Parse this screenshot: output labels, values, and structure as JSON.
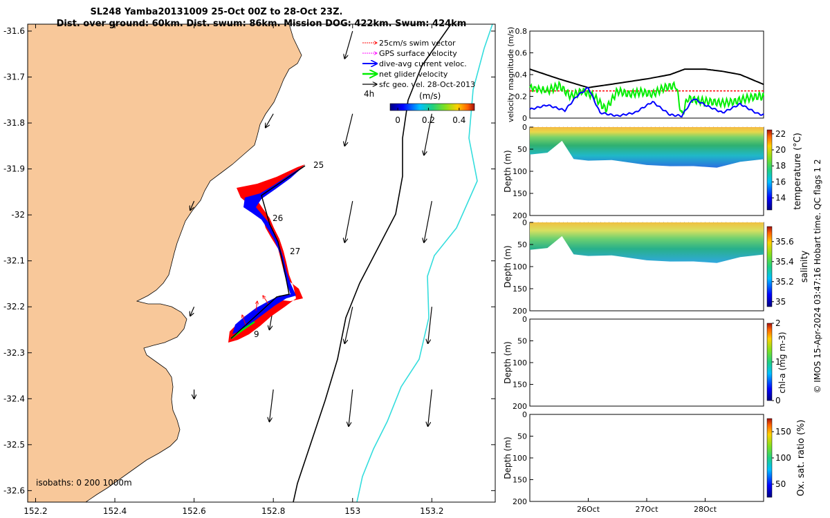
{
  "title": {
    "line1": "SL248 Yamba20131009 25-Oct 00Z to 28-Oct 23Z.",
    "line2": "Dist. over ground: 60km. Dist. swum: 86km. Mission DOG: 422km. Swum: 424km"
  },
  "credit": "© IMOS 15-Apr-2024 03:47:16 Hobart time. QC flags 1  2",
  "colors": {
    "land": "#f8c89a",
    "swim": "#ff0000",
    "gps": "#ff00ff",
    "current": "#0000ff",
    "net": "#00ee00",
    "sfc": "#000000",
    "isobath_200": "#000000",
    "isobath_1000": "#33dddd"
  },
  "chart_data": [
    {
      "type": "map",
      "x_ticks": [
        "152.2",
        "152.4",
        "152.6",
        "152.8",
        "153",
        "153.2"
      ],
      "x_tick_values": [
        152.2,
        152.4,
        152.6,
        152.8,
        153.0,
        153.2
      ],
      "xlim": [
        152.18,
        153.36
      ],
      "y_ticks": [
        "-31.6",
        "-31.7",
        "-31.8",
        "-31.9",
        "-32",
        "-32.1",
        "-32.2",
        "-32.3",
        "-32.4",
        "-32.5",
        "-32.6"
      ],
      "y_tick_values": [
        -31.6,
        -31.7,
        -31.8,
        -31.9,
        -32.0,
        -32.1,
        -32.2,
        -32.3,
        -32.4,
        -32.5,
        -32.6
      ],
      "ylim": [
        -32.625,
        -31.585
      ],
      "legend": [
        {
          "label": "25cm/s swim vector",
          "color": "#ff0000",
          "style": "dotted"
        },
        {
          "label": "GPS surface velocity",
          "color": "#ff00ff",
          "style": "dotted"
        },
        {
          "label": "dive-avg current veloc.",
          "color": "#0000ff",
          "style": "solid"
        },
        {
          "label": "net glider velocity",
          "color": "#00ee00",
          "style": "solid"
        },
        {
          "label": "sfc geo. vel. 28-Oct-2013",
          "color": "#000000",
          "style": "solid"
        }
      ],
      "legend_extra": "4h",
      "colorbar": {
        "label": "(m/s)",
        "ticks": [
          "0",
          "0.2",
          "0.4"
        ],
        "tick_values": [
          0,
          0.2,
          0.4
        ],
        "range": [
          -0.05,
          0.5
        ]
      },
      "isobath_label": "isobaths: 0   200  1000m",
      "day_labels": [
        {
          "label": "25",
          "lon": 152.875,
          "lat": -31.89
        },
        {
          "label": "26",
          "lon": 152.79,
          "lat": -31.99
        },
        {
          "label": "27",
          "lon": 152.82,
          "lat": -32.07
        },
        {
          "label": "9",
          "lon": 152.74,
          "lat": -32.265
        }
      ],
      "glider_track": [
        {
          "lon": 152.855,
          "lat": -31.885
        },
        {
          "lon": 152.73,
          "lat": -31.95
        },
        {
          "lon": 152.775,
          "lat": -31.995
        },
        {
          "lon": 152.79,
          "lat": -32.05
        },
        {
          "lon": 152.81,
          "lat": -32.1
        },
        {
          "lon": 152.825,
          "lat": -32.175
        },
        {
          "lon": 152.78,
          "lat": -32.18
        },
        {
          "lon": 152.68,
          "lat": -32.26
        }
      ],
      "sfc_vectors": [
        {
          "lon": 152.6,
          "lat": -31.97,
          "dlon": -0.01,
          "dlat": -0.02
        },
        {
          "lon": 152.6,
          "lat": -32.2,
          "dlon": -0.01,
          "dlat": -0.02
        },
        {
          "lon": 152.6,
          "lat": -32.38,
          "dlon": 0.0,
          "dlat": -0.02
        },
        {
          "lon": 152.8,
          "lat": -31.78,
          "dlon": -0.02,
          "dlat": -0.03
        },
        {
          "lon": 152.8,
          "lat": -32.2,
          "dlon": -0.01,
          "dlat": -0.05
        },
        {
          "lon": 152.8,
          "lat": -32.38,
          "dlon": -0.01,
          "dlat": -0.07
        },
        {
          "lon": 153.0,
          "lat": -31.6,
          "dlon": -0.02,
          "dlat": -0.06
        },
        {
          "lon": 153.0,
          "lat": -31.78,
          "dlon": -0.02,
          "dlat": -0.07
        },
        {
          "lon": 153.0,
          "lat": -31.97,
          "dlon": -0.02,
          "dlat": -0.09
        },
        {
          "lon": 153.0,
          "lat": -32.2,
          "dlon": -0.02,
          "dlat": -0.08
        },
        {
          "lon": 153.0,
          "lat": -32.38,
          "dlon": -0.01,
          "dlat": -0.08
        },
        {
          "lon": 153.2,
          "lat": -31.78,
          "dlon": -0.02,
          "dlat": -0.09
        },
        {
          "lon": 153.2,
          "lat": -31.97,
          "dlon": -0.02,
          "dlat": -0.09
        },
        {
          "lon": 153.2,
          "lat": -32.2,
          "dlon": -0.01,
          "dlat": -0.08
        },
        {
          "lon": 153.2,
          "lat": -32.38,
          "dlon": -0.01,
          "dlat": -0.08
        }
      ]
    },
    {
      "type": "line",
      "ylabel": "velocity magnitude (m/s)",
      "ylim": [
        0,
        0.8
      ],
      "y_ticks": [
        "0",
        "0.2",
        "0.4",
        "0.6",
        "0.8"
      ],
      "xlim": [
        0,
        4
      ],
      "series": [
        {
          "color": "#000000",
          "x": [
            0,
            0.5,
            1.0,
            1.5,
            2.0,
            2.4,
            2.65,
            3.0,
            3.3,
            3.6,
            4.0
          ],
          "y": [
            0.45,
            0.36,
            0.28,
            0.32,
            0.36,
            0.4,
            0.45,
            0.45,
            0.43,
            0.4,
            0.31
          ]
        },
        {
          "color": "#ff0000",
          "x": [
            0,
            4
          ],
          "y": [
            0.25,
            0.25
          ]
        },
        {
          "color": "#00ee00",
          "x": [
            0,
            0.3,
            0.5,
            0.7,
            0.9,
            1.1,
            1.3,
            1.5,
            1.7,
            1.9,
            2.1,
            2.3,
            2.5,
            2.6,
            2.7,
            2.9,
            3.1,
            3.3,
            3.5,
            3.7,
            3.9,
            4.0
          ],
          "y": [
            0.28,
            0.25,
            0.3,
            0.2,
            0.25,
            0.2,
            0.08,
            0.25,
            0.22,
            0.24,
            0.22,
            0.28,
            0.3,
            0.02,
            0.18,
            0.16,
            0.15,
            0.14,
            0.15,
            0.18,
            0.2,
            0.2
          ]
        },
        {
          "color": "#0000ff",
          "x": [
            0,
            0.3,
            0.6,
            0.8,
            1.0,
            1.2,
            1.5,
            1.8,
            2.1,
            2.4,
            2.6,
            2.8,
            3.0,
            3.3,
            3.6,
            3.9,
            4.0
          ],
          "y": [
            0.08,
            0.12,
            0.07,
            0.2,
            0.28,
            0.05,
            0.02,
            0.05,
            0.15,
            0.03,
            0.02,
            0.18,
            0.12,
            0.05,
            0.13,
            0.04,
            0.03
          ]
        }
      ]
    },
    {
      "type": "heatmap",
      "ylabel": "Depth (m)",
      "cblabel": "temperature (°C)",
      "ylim": [
        200,
        0
      ],
      "y_ticks": [
        "0",
        "50",
        "100",
        "150",
        "200"
      ],
      "cbar_ticks": [
        "14",
        "16",
        "18",
        "20",
        "22"
      ],
      "cbar_range": [
        12.5,
        22.5
      ],
      "xlim": [
        0,
        4
      ],
      "bottom": {
        "x": [
          0,
          0.3,
          0.55,
          0.75,
          1.0,
          1.4,
          2.0,
          2.4,
          2.8,
          3.2,
          3.6,
          4.0
        ],
        "d": [
          62,
          55,
          35,
          70,
          75,
          78,
          82,
          90,
          90,
          88,
          82,
          72
        ]
      }
    },
    {
      "type": "heatmap",
      "ylabel": "Depth (m)",
      "cblabel": "salinity",
      "ylim": [
        200,
        0
      ],
      "y_ticks": [
        "0",
        "50",
        "100",
        "150",
        "200"
      ],
      "cbar_ticks": [
        "35",
        "35.2",
        "35.4",
        "35.6"
      ],
      "cbar_range": [
        34.95,
        35.75
      ],
      "xlim": [
        0,
        4
      ],
      "bottom": {
        "x": [
          0,
          0.3,
          0.55,
          0.75,
          1.0,
          1.4,
          2.0,
          2.4,
          2.8,
          3.2,
          3.6,
          4.0
        ],
        "d": [
          62,
          55,
          35,
          70,
          75,
          78,
          82,
          90,
          90,
          88,
          82,
          72
        ]
      }
    },
    {
      "type": "heatmap",
      "ylabel": "Depth (m)",
      "cblabel": "chl-a (mg m-3)",
      "ylim": [
        200,
        0
      ],
      "y_ticks": [
        "0",
        "50",
        "100",
        "150",
        "200"
      ],
      "cbar_ticks": [
        "0",
        "1",
        "2"
      ],
      "cbar_range": [
        0,
        2
      ],
      "xlim": [
        0,
        4
      ]
    },
    {
      "type": "heatmap",
      "ylabel": "Depth (m)",
      "cblabel": "Ox. sat. ratio (%)",
      "ylim": [
        200,
        0
      ],
      "y_ticks": [
        "0",
        "50",
        "100",
        "150",
        "200"
      ],
      "cbar_ticks": [
        "50",
        "100",
        "150"
      ],
      "cbar_range": [
        25,
        175
      ],
      "xlim": [
        0,
        4
      ],
      "x_ticks": [
        "26Oct",
        "27Oct",
        "28Oct"
      ],
      "x_tick_values": [
        1,
        2,
        3
      ]
    }
  ]
}
